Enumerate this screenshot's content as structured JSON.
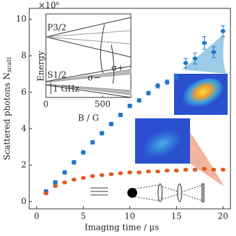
{
  "chart_data": {
    "type": "scatter",
    "y_multiplier": "×10⁶",
    "x_label": "Imaging time / μs",
    "y_label": "Scattered photons N",
    "y_label_sub": "scatt",
    "x": [
      1,
      2,
      3,
      4,
      5,
      6,
      7,
      8,
      9,
      10,
      11,
      12,
      13,
      14,
      15,
      16,
      17,
      18,
      19,
      20
    ],
    "series": [
      {
        "color": "#1f78c8",
        "values": [
          0.55,
          1.05,
          1.6,
          2.15,
          2.7,
          3.25,
          3.75,
          4.25,
          4.75,
          5.25,
          5.55,
          5.95,
          6.35,
          6.55,
          6.85,
          7.6,
          7.85,
          8.7,
          8.2,
          9.35
        ],
        "errors": [
          0.1,
          0.1,
          0.1,
          0.1,
          0.1,
          0.1,
          0.1,
          0.1,
          0.1,
          0.1,
          0.1,
          0.1,
          0.12,
          0.12,
          0.15,
          0.25,
          0.3,
          0.35,
          0.3,
          0.3
        ]
      },
      {
        "color": "#e05a1e",
        "values": [
          0.45,
          0.85,
          1.05,
          1.2,
          1.3,
          1.4,
          1.45,
          1.5,
          1.55,
          1.6,
          1.6,
          1.65,
          1.65,
          1.7,
          1.7,
          1.75,
          1.75,
          1.8,
          1.75,
          1.75
        ]
      }
    ],
    "xlim": [
      -0.8,
      20.8
    ],
    "ylim": [
      -0.4,
      10.6
    ],
    "xticks": [
      0,
      5,
      10,
      15,
      20
    ],
    "yticks": [
      0,
      2,
      4,
      6,
      8,
      10
    ],
    "inset": {
      "x_label": "B / G",
      "y_label": "Energy",
      "xlim": [
        0,
        750
      ],
      "xticks": [
        0,
        500
      ],
      "upper_level": "P3/2",
      "lower_level": "S1/2",
      "sigma_minus": "σ−",
      "sigma_plus": "σ+",
      "scale_label": "1 GHz"
    }
  }
}
